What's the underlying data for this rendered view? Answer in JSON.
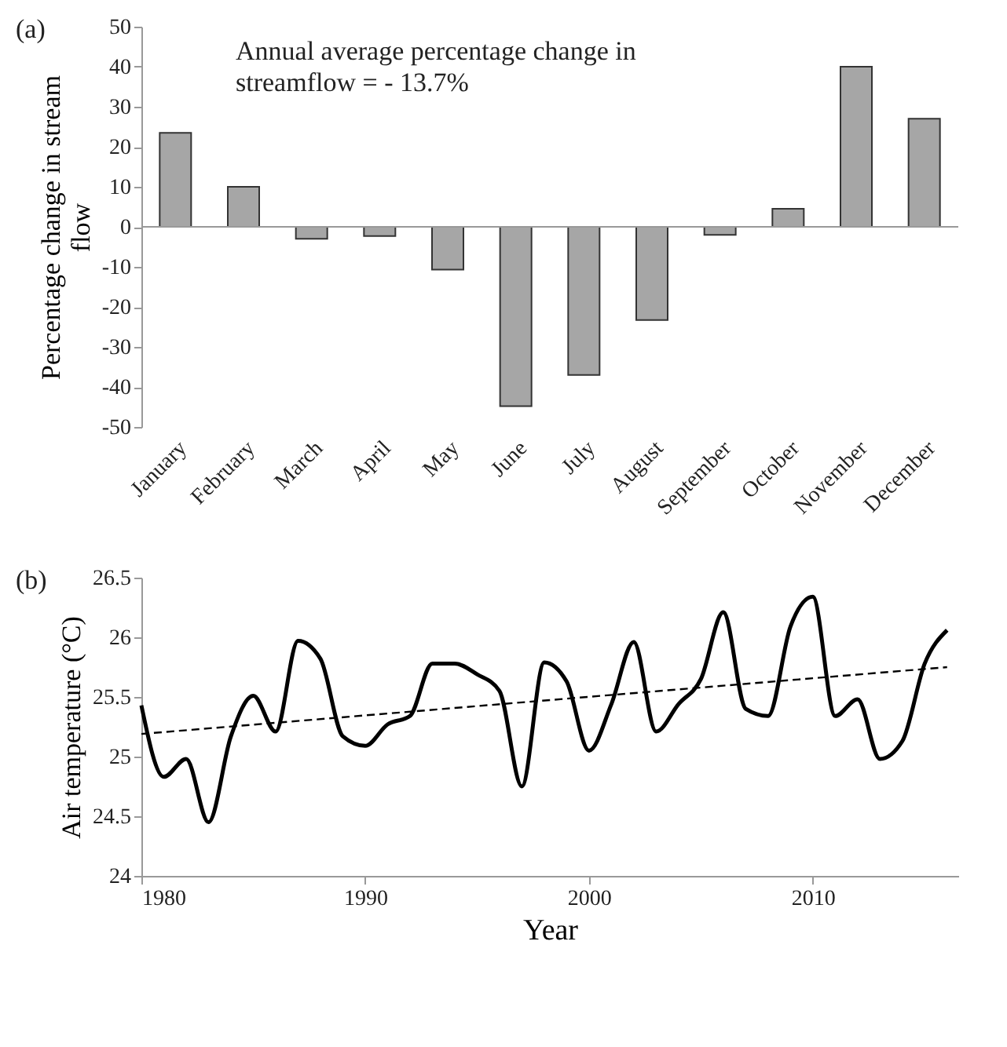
{
  "chart_data": [
    {
      "type": "bar",
      "ylabel": "Percentage change in stream flow",
      "annotations": [
        "(a)",
        "Annual average percentage change in streamflow = - 13.7%"
      ],
      "categories": [
        "January",
        "February",
        "March",
        "April",
        "May",
        "June",
        "July",
        "August",
        "September",
        "October",
        "November",
        "December"
      ],
      "values": [
        23.5,
        10,
        -3,
        -2.3,
        -10.7,
        -44.8,
        -37,
        -23.3,
        -2,
        4.5,
        40,
        27
      ],
      "color": "#a6a6a6",
      "ylim": [
        -50,
        50
      ],
      "yticks": [
        -50,
        -40,
        -30,
        -20,
        -10,
        0,
        10,
        20,
        30,
        40,
        50
      ],
      "ref_lines": [
        {
          "axis": "y",
          "value": 0,
          "color": "#999999"
        }
      ]
    },
    {
      "type": "line",
      "xlabel": "Year",
      "ylabel": "Air temperature (°C)",
      "annotations": [
        "(b)"
      ],
      "x": [
        1980,
        1981,
        1982,
        1983,
        1984,
        1985,
        1986,
        1987,
        1988,
        1989,
        1990,
        1991,
        1992,
        1993,
        1994,
        1995,
        1996,
        1997,
        1998,
        1999,
        2000,
        2001,
        2002,
        2003,
        2004,
        2005,
        2006,
        2007,
        2008,
        2009,
        2010,
        2011,
        2012,
        2013,
        2014,
        2015,
        2016
      ],
      "series": [
        {
          "color": "#000000",
          "line_style": "solid",
          "values": [
            25.43,
            24.83,
            24.98,
            24.45,
            25.17,
            25.51,
            25.21,
            25.97,
            25.82,
            25.17,
            25.09,
            25.27,
            25.34,
            25.78,
            25.78,
            25.69,
            25.55,
            24.75,
            25.79,
            25.63,
            25.05,
            25.44,
            25.96,
            25.21,
            25.44,
            25.65,
            26.21,
            25.4,
            25.34,
            26.09,
            26.34,
            25.34,
            25.48,
            24.98,
            25.13,
            25.78,
            26.06
          ]
        },
        {
          "color": "#000000",
          "line_style": "dashed",
          "x": [
            1980,
            2016
          ],
          "values": [
            25.19,
            25.75
          ]
        }
      ],
      "xlim": [
        1980,
        2016.5
      ],
      "xticks": [
        1980,
        1990,
        2000,
        2010
      ],
      "ylim": [
        24,
        26.5
      ],
      "yticks": [
        24,
        24.5,
        25,
        25.5,
        26,
        26.5
      ]
    }
  ]
}
